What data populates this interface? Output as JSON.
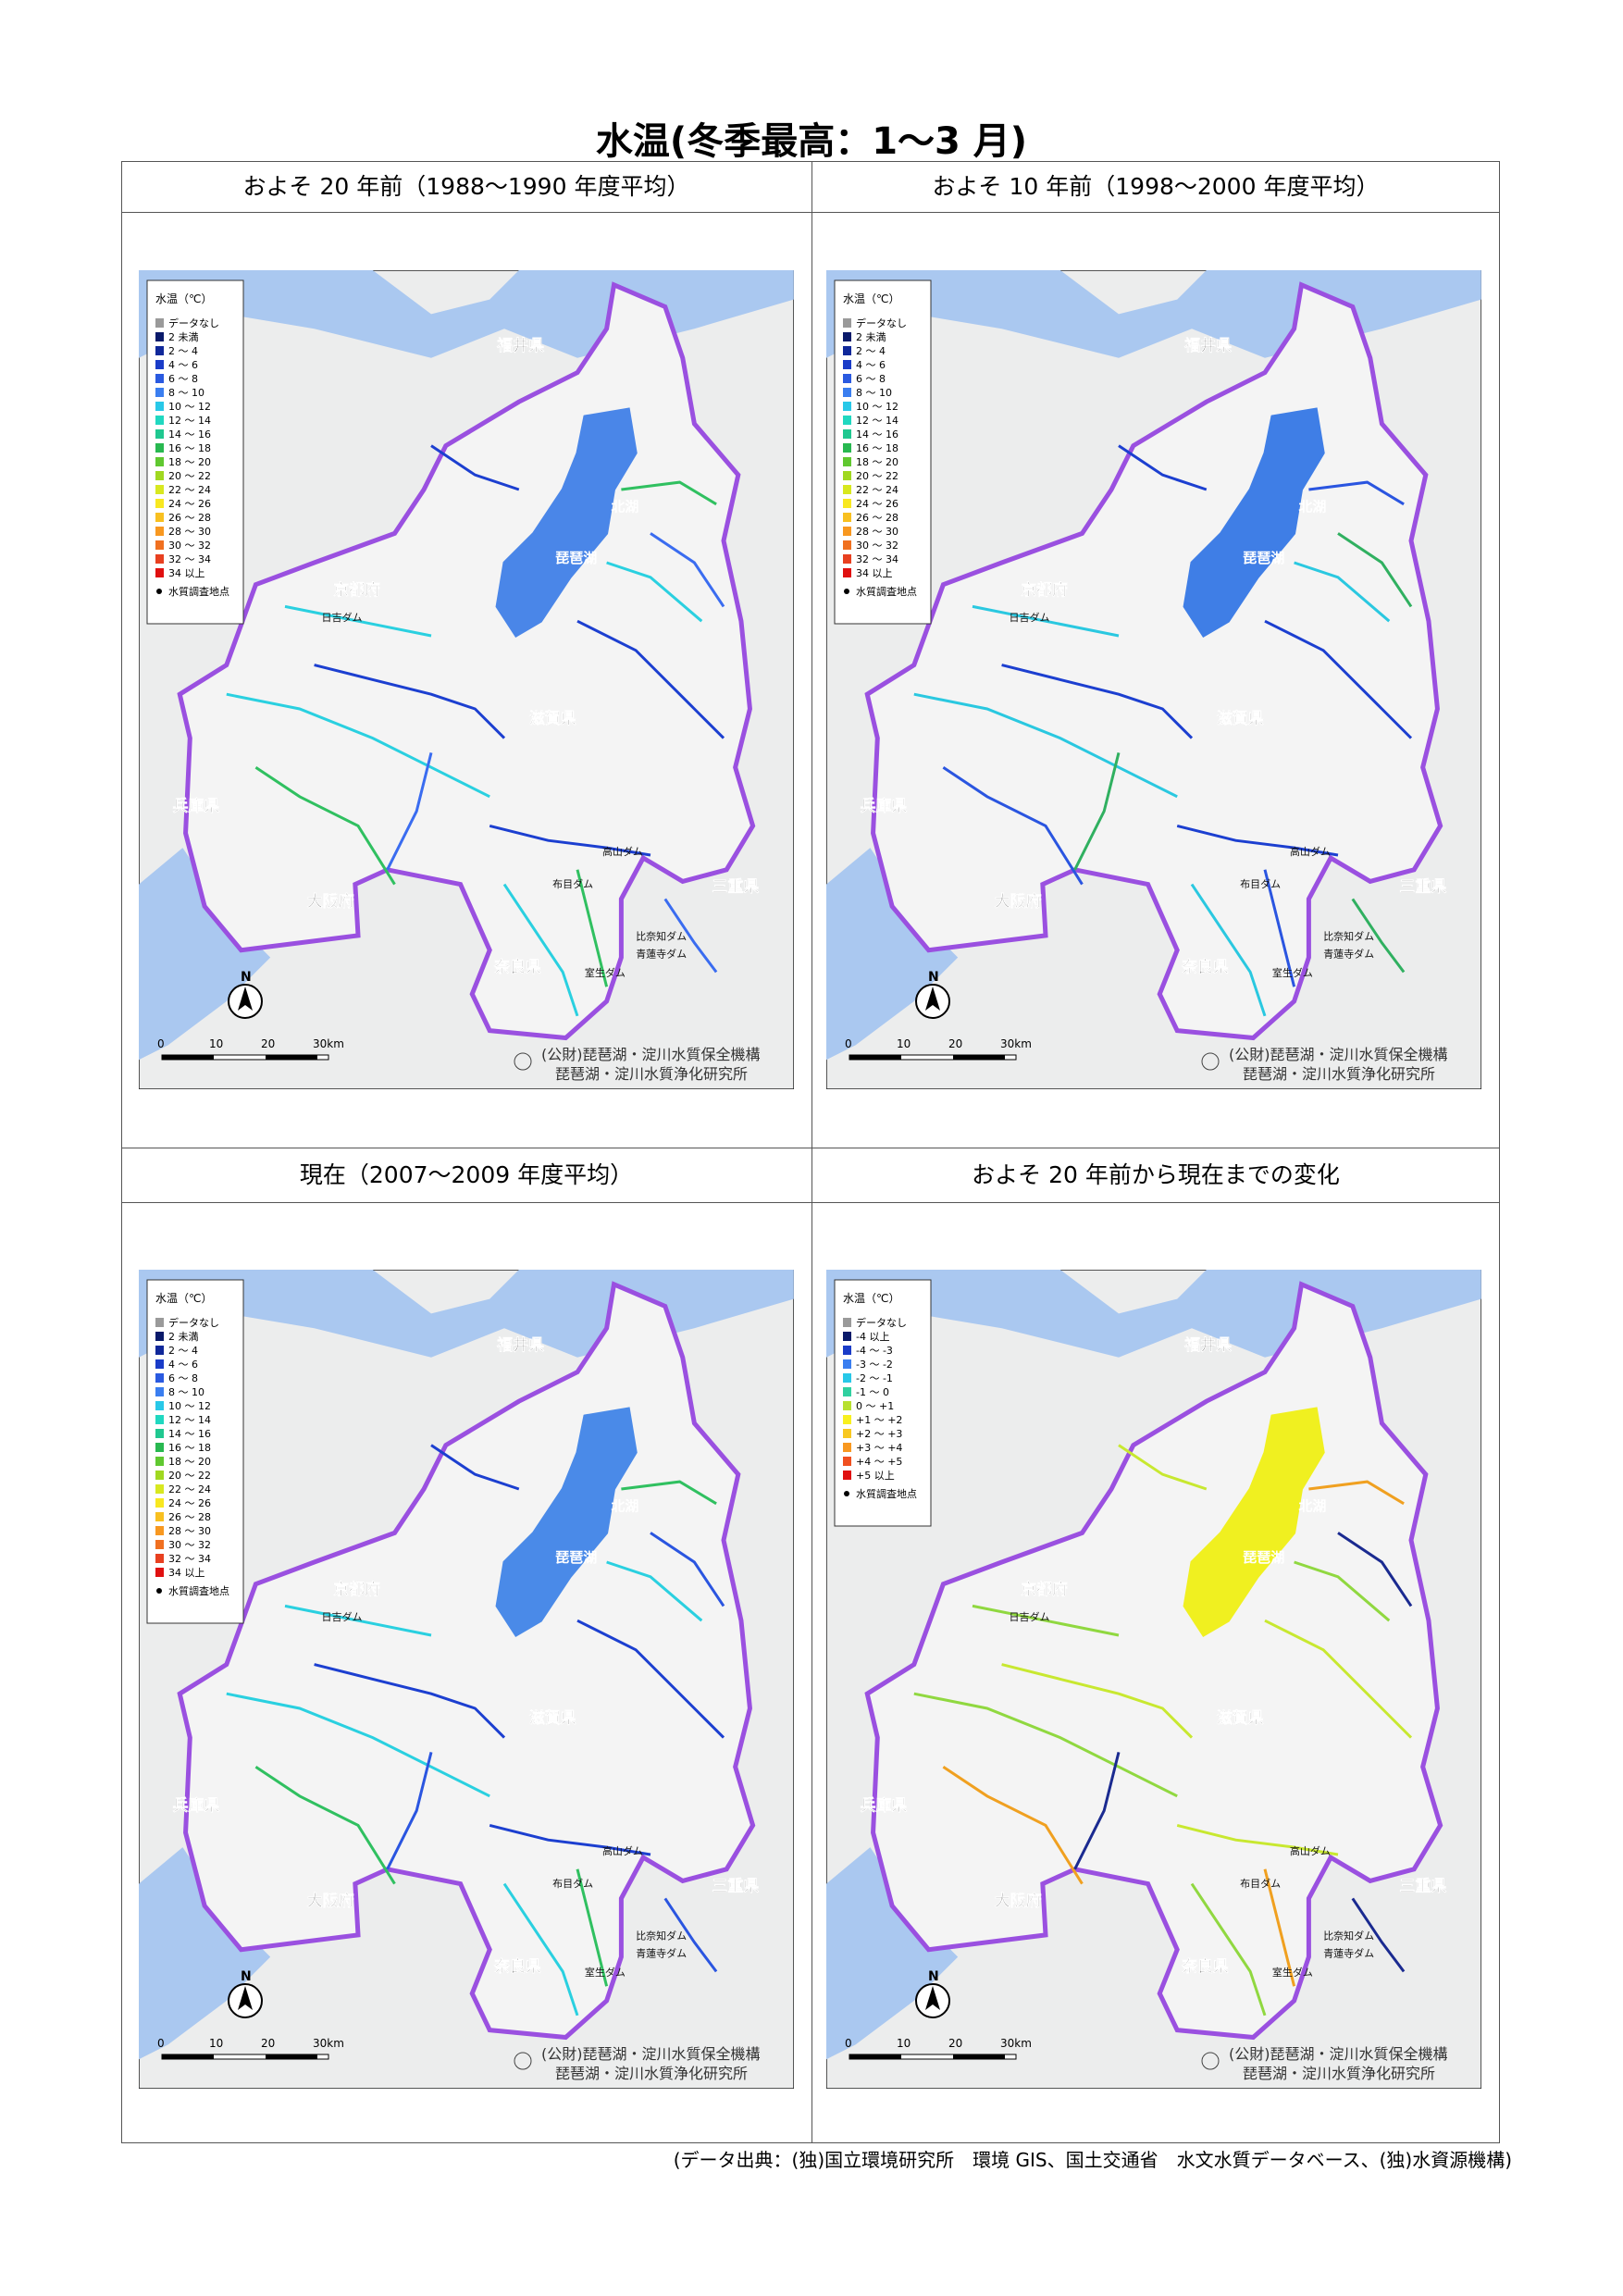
{
  "title": "水温(冬季最高：1～3 月)",
  "panels": [
    {
      "heading": "およそ 20 年前（1988～1990 年度平均）",
      "legend": "temperature_legend",
      "lake_color": "#4a86e8",
      "river_colors": [
        "#1c3fd0",
        "#2ad0e0",
        "#30c060",
        "#3a6cf0"
      ]
    },
    {
      "heading": "およそ 10 年前（1998～2000 年度平均）",
      "legend": "temperature_legend",
      "lake_color": "#3f7ee6",
      "river_colors": [
        "#1c3fd0",
        "#2ac8e0",
        "#2a55e0",
        "#30b060"
      ]
    },
    {
      "heading": "現在（2007～2009 年度平均）",
      "legend": "temperature_legend",
      "lake_color": "#4a8ae8",
      "river_colors": [
        "#1c3fd0",
        "#2ad0e0",
        "#30c060",
        "#2a55e0"
      ]
    },
    {
      "heading": "およそ 20 年前から現在までの変化",
      "legend": "change_legend",
      "lake_color": "#f0f020",
      "river_colors": [
        "#c8e830",
        "#90d840",
        "#f0a020",
        "#1a2a90"
      ]
    }
  ],
  "temperature_legend": {
    "title": "水温（℃）",
    "items": [
      {
        "label": "データなし",
        "color": "#9a9a9a"
      },
      {
        "label": "2 未満",
        "color": "#0a1a6a"
      },
      {
        "label": "2 ～ 4",
        "color": "#10289a"
      },
      {
        "label": "4 ～ 6",
        "color": "#1a3cc8"
      },
      {
        "label": "6 ～ 8",
        "color": "#2a5ae0"
      },
      {
        "label": "8 ～ 10",
        "color": "#3a7ef0"
      },
      {
        "label": "10 ～ 12",
        "color": "#28c8e8"
      },
      {
        "label": "12 ～ 14",
        "color": "#20d8c0"
      },
      {
        "label": "14 ～ 16",
        "color": "#20c890"
      },
      {
        "label": "16 ～ 18",
        "color": "#28b850"
      },
      {
        "label": "18 ～ 20",
        "color": "#60c830"
      },
      {
        "label": "20 ～ 22",
        "color": "#a0d820"
      },
      {
        "label": "22 ～ 24",
        "color": "#d8e820"
      },
      {
        "label": "24 ～ 26",
        "color": "#f8e820"
      },
      {
        "label": "26 ～ 28",
        "color": "#f8c020"
      },
      {
        "label": "28 ～ 30",
        "color": "#f89820"
      },
      {
        "label": "30 ～ 32",
        "color": "#f07020"
      },
      {
        "label": "32 ～ 34",
        "color": "#e84020"
      },
      {
        "label": "34 以上",
        "color": "#e01010"
      }
    ],
    "station": "水質調査地点"
  },
  "change_legend": {
    "title": "水温（℃）",
    "items": [
      {
        "label": "データなし",
        "color": "#9a9a9a"
      },
      {
        "label": "-4 以上",
        "color": "#0a1a6a"
      },
      {
        "label": "-4 ～ -3",
        "color": "#1a3cc8"
      },
      {
        "label": "-3 ～ -2",
        "color": "#3a7ef0"
      },
      {
        "label": "-2 ～ -1",
        "color": "#28c8e8"
      },
      {
        "label": "-1 ～ 0",
        "color": "#30d0a0"
      },
      {
        "label": "0 ～ +1",
        "color": "#b8e030"
      },
      {
        "label": "+1 ～ +2",
        "color": "#f8f020"
      },
      {
        "label": "+2 ～ +3",
        "color": "#f8c820"
      },
      {
        "label": "+3 ～ +4",
        "color": "#f89820"
      },
      {
        "label": "+4 ～ +5",
        "color": "#f05020"
      },
      {
        "label": "+5 以上",
        "color": "#e01010"
      }
    ],
    "station": "水質調査地点"
  },
  "map_labels": [
    "福井県",
    "京都府",
    "滋賀県",
    "兵庫県",
    "大阪府",
    "三重県",
    "奈良県",
    "琵琶湖",
    "北湖",
    "日吉ダム",
    "高山ダム",
    "布目ダム",
    "比奈知ダム",
    "青蓮寺ダム",
    "室生ダム"
  ],
  "north": "N",
  "scale": [
    "0",
    "10",
    "20",
    "30km"
  ],
  "credit": [
    "(公財)琵琶湖・淀川水質保全機構",
    "琵琶湖・淀川水質浄化研究所"
  ],
  "source": "(データ出典：(独)国立環境研究所　環境 GIS、国土交通省　水文水質データベース、(独)水資源機構)"
}
